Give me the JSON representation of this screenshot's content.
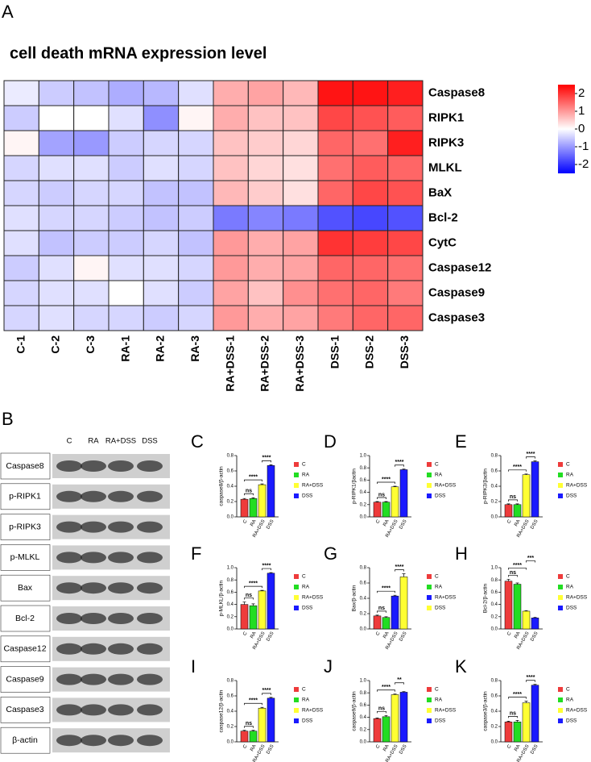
{
  "chart_data": [
    {
      "type": "heatmap",
      "panel": "A",
      "title": "cell death mRNA expression level",
      "x_categories": [
        "C-1",
        "C-2",
        "C-3",
        "RA-1",
        "RA-2",
        "RA-3",
        "RA+DSS-1",
        "RA+DSS-2",
        "RA+DSS-3",
        "DSS-1",
        "DSS-2",
        "DSS-3"
      ],
      "y_categories": [
        "Caspase8",
        "RIPK1",
        "RIPK3",
        "MLKL",
        "BaX",
        "Bcl-2",
        "CytC",
        "Caspase12",
        "Caspase9",
        "Caspase3"
      ],
      "values": [
        [
          -0.2,
          -0.5,
          -0.6,
          -0.8,
          -0.7,
          -0.3,
          0.8,
          0.9,
          0.7,
          2.3,
          2.3,
          2.2
        ],
        [
          -0.5,
          0,
          0,
          -0.3,
          -1.1,
          0.1,
          0.8,
          0.6,
          0.6,
          1.8,
          1.7,
          1.6
        ],
        [
          0.1,
          -0.9,
          -1.0,
          -0.5,
          -0.4,
          -0.4,
          0.6,
          0.5,
          0.4,
          1.5,
          1.4,
          2.2
        ],
        [
          -0.4,
          -0.3,
          -0.3,
          -0.5,
          -0.3,
          -0.4,
          0.6,
          0.4,
          0.3,
          1.4,
          1.6,
          1.5
        ],
        [
          -0.4,
          -0.5,
          -0.4,
          -0.4,
          -0.6,
          -0.6,
          0.7,
          0.5,
          0.3,
          1.5,
          1.8,
          1.7
        ],
        [
          -0.3,
          -0.4,
          -0.4,
          -0.5,
          -0.6,
          -0.5,
          -1.3,
          -1.2,
          -1.3,
          -1.7,
          -1.8,
          -1.7
        ],
        [
          -0.3,
          -0.6,
          -0.5,
          -0.5,
          -0.4,
          -0.6,
          1.0,
          0.8,
          0.9,
          2.0,
          1.9,
          1.8
        ],
        [
          -0.5,
          -0.3,
          0.1,
          -0.3,
          -0.3,
          -0.4,
          1.0,
          0.8,
          0.9,
          1.5,
          1.5,
          1.4
        ],
        [
          -0.4,
          -0.3,
          -0.3,
          0,
          -0.3,
          -0.5,
          0.9,
          0.6,
          1.1,
          1.4,
          1.5,
          1.3
        ],
        [
          -0.4,
          -0.3,
          -0.4,
          -0.4,
          -0.5,
          -0.4,
          1.0,
          0.8,
          0.9,
          1.3,
          1.5,
          1.5
        ]
      ],
      "colorbar": {
        "lim": [
          -2.5,
          2.5
        ],
        "ticks": [
          2,
          1,
          0,
          -1,
          -2
        ],
        "colors": [
          "#0000ff",
          "#ffffff",
          "#ff0000"
        ]
      }
    },
    {
      "type": "bar",
      "panel": "C",
      "ylabel": "caspase8/β-actin",
      "categories": [
        "C",
        "RA",
        "RA+DSS",
        "DSS"
      ],
      "colors": [
        "#ee3b3b",
        "#22dd22",
        "#ffff33",
        "#1a1aff"
      ],
      "values": [
        0.23,
        0.24,
        0.42,
        0.67
      ],
      "errors": [
        0.01,
        0.01,
        0.01,
        0.01
      ],
      "ylim": [
        0,
        0.8
      ],
      "yticks": [
        {
          "value": 0,
          "label": "0.0"
        },
        0.2,
        0.4,
        0.6,
        0.8
      ],
      "significance": [
        {
          "label": "ns",
          "between": [
            "C",
            "RA"
          ]
        },
        {
          "label": "****",
          "between": [
            "C",
            "RA+DSS"
          ]
        },
        {
          "label": "****",
          "between": [
            "RA+DSS",
            "DSS"
          ]
        }
      ]
    },
    {
      "type": "bar",
      "panel": "D",
      "ylabel": "p-RIPK1/βactin",
      "categories": [
        "C",
        "RA",
        "RA+DSS",
        "DSS"
      ],
      "colors": [
        "#ee3b3b",
        "#22dd22",
        "#ffff33",
        "#1a1aff"
      ],
      "values": [
        0.24,
        0.24,
        0.49,
        0.77
      ],
      "errors": [
        0.01,
        0.01,
        0.01,
        0.01
      ],
      "ylim": [
        0,
        1.0
      ],
      "yticks": [
        {
          "value": 0,
          "label": "0.0"
        },
        0.2,
        0.4,
        0.6,
        0.8,
        {
          "value": 1,
          "label": "1.0"
        }
      ],
      "significance": [
        {
          "label": "ns",
          "between": [
            "C",
            "RA"
          ]
        },
        {
          "label": "****",
          "between": [
            "C",
            "RA+DSS"
          ]
        },
        {
          "label": "****",
          "between": [
            "RA+DSS",
            "DSS"
          ]
        }
      ]
    },
    {
      "type": "bar",
      "panel": "E",
      "ylabel": "p-RIPK3/βactin",
      "categories": [
        "C",
        "RA",
        "RA+DSS",
        "DSS"
      ],
      "colors": [
        "#ee3b3b",
        "#22dd22",
        "#ffff33",
        "#1a1aff"
      ],
      "values": [
        0.16,
        0.16,
        0.55,
        0.72
      ],
      "errors": [
        0.01,
        0.01,
        0.01,
        0.01
      ],
      "ylim": [
        0,
        0.8
      ],
      "yticks": [
        {
          "value": 0,
          "label": "0.0"
        },
        0.2,
        0.4,
        0.6,
        0.8
      ],
      "significance": [
        {
          "label": "ns",
          "between": [
            "C",
            "RA"
          ]
        },
        {
          "label": "****",
          "between": [
            "C",
            "RA+DSS"
          ]
        },
        {
          "label": "****",
          "between": [
            "RA+DSS",
            "DSS"
          ]
        }
      ]
    },
    {
      "type": "bar",
      "panel": "F",
      "ylabel": "p-MLKL/β-actin",
      "categories": [
        "C",
        "RA",
        "RA+DSS",
        "DSS"
      ],
      "colors": [
        "#ee3b3b",
        "#22dd22",
        "#ffff33",
        "#1a1aff"
      ],
      "values": [
        0.4,
        0.38,
        0.62,
        0.91
      ],
      "errors": [
        0.04,
        0.03,
        0.01,
        0.01
      ],
      "ylim": [
        0,
        1.0
      ],
      "yticks": [
        {
          "value": 0,
          "label": "0.0"
        },
        0.2,
        0.4,
        0.6,
        0.8,
        {
          "value": 1,
          "label": "1.0"
        }
      ],
      "significance": [
        {
          "label": "ns",
          "between": [
            "C",
            "RA"
          ]
        },
        {
          "label": "****",
          "between": [
            "C",
            "RA+DSS"
          ]
        },
        {
          "label": "****",
          "between": [
            "RA+DSS",
            "DSS"
          ]
        }
      ]
    },
    {
      "type": "bar",
      "panel": "G",
      "ylabel": "Bax/β-actin",
      "categories": [
        "C",
        "RA",
        "RA+DSS",
        "DSS"
      ],
      "colors": [
        "#ee3b3b",
        "#22dd22",
        "#1a1aff",
        "#ffff33"
      ],
      "values": [
        0.17,
        0.15,
        0.43,
        0.68
      ],
      "errors": [
        0.01,
        0.01,
        0.01,
        0.04
      ],
      "ylim": [
        0,
        0.8
      ],
      "yticks": [
        {
          "value": 0,
          "label": "0.0"
        },
        0.2,
        0.4,
        0.6,
        0.8
      ],
      "significance": [
        {
          "label": "ns",
          "between": [
            "C",
            "RA"
          ]
        },
        {
          "label": "****",
          "between": [
            "C",
            "RA+DSS"
          ]
        },
        {
          "label": "****",
          "between": [
            "RA+DSS",
            "DSS"
          ]
        }
      ]
    },
    {
      "type": "bar",
      "panel": "H",
      "ylabel": "Bcl-2/β-actin",
      "categories": [
        "C",
        "RA",
        "RA+DSS",
        "DSS"
      ],
      "colors": [
        "#ee3b3b",
        "#22dd22",
        "#ffff33",
        "#1a1aff"
      ],
      "values": [
        0.78,
        0.73,
        0.29,
        0.18
      ],
      "errors": [
        0.03,
        0.02,
        0.01,
        0.01
      ],
      "ylim": [
        0,
        1.0
      ],
      "yticks": [
        {
          "value": 0,
          "label": "0.0"
        },
        0.2,
        0.4,
        0.6,
        0.8,
        {
          "value": 1,
          "label": "1.0"
        }
      ],
      "significance": [
        {
          "label": "ns",
          "between": [
            "C",
            "RA"
          ]
        },
        {
          "label": "****",
          "between": [
            "C",
            "RA+DSS"
          ]
        },
        {
          "label": "***",
          "between": [
            "RA+DSS",
            "DSS"
          ]
        }
      ]
    },
    {
      "type": "bar",
      "panel": "I",
      "ylabel": "caspase12/β-actin",
      "categories": [
        "C",
        "RA",
        "RA+DSS",
        "DSS"
      ],
      "colors": [
        "#ee3b3b",
        "#22dd22",
        "#ffff33",
        "#1a1aff"
      ],
      "values": [
        0.14,
        0.14,
        0.44,
        0.57
      ],
      "errors": [
        0.01,
        0.01,
        0.01,
        0.01
      ],
      "ylim": [
        0,
        0.8
      ],
      "yticks": [
        {
          "value": 0,
          "label": "0.0"
        },
        0.2,
        0.4,
        0.6,
        0.8
      ],
      "significance": [
        {
          "label": "ns",
          "between": [
            "C",
            "RA"
          ]
        },
        {
          "label": "****",
          "between": [
            "C",
            "RA+DSS"
          ]
        },
        {
          "label": "****",
          "between": [
            "RA+DSS",
            "DSS"
          ]
        }
      ]
    },
    {
      "type": "bar",
      "panel": "J",
      "ylabel": "caspase9/β-actin",
      "categories": [
        "C",
        "RA",
        "RA+DSS",
        "DSS"
      ],
      "colors": [
        "#ee3b3b",
        "#22dd22",
        "#ffff33",
        "#1a1aff"
      ],
      "values": [
        0.38,
        0.41,
        0.77,
        0.81
      ],
      "errors": [
        0.01,
        0.02,
        0.01,
        0.01
      ],
      "ylim": [
        0,
        1.0
      ],
      "yticks": [
        {
          "value": 0,
          "label": "0.0"
        },
        0.2,
        0.4,
        0.6,
        0.8,
        {
          "value": 1,
          "label": "1.0"
        }
      ],
      "significance": [
        {
          "label": "ns",
          "between": [
            "C",
            "RA"
          ]
        },
        {
          "label": "****",
          "between": [
            "C",
            "RA+DSS"
          ]
        },
        {
          "label": "**",
          "between": [
            "RA+DSS",
            "DSS"
          ]
        }
      ]
    },
    {
      "type": "bar",
      "panel": "K",
      "ylabel": "caspase3/β-actin",
      "categories": [
        "C",
        "RA",
        "RA+DSS",
        "DSS"
      ],
      "colors": [
        "#ee3b3b",
        "#22dd22",
        "#ffff33",
        "#1a1aff"
      ],
      "values": [
        0.26,
        0.26,
        0.51,
        0.74
      ],
      "errors": [
        0.01,
        0.02,
        0.02,
        0.01
      ],
      "ylim": [
        0,
        0.8
      ],
      "yticks": [
        {
          "value": 0,
          "label": "0.0"
        },
        0.2,
        0.4,
        0.6,
        0.8
      ],
      "significance": [
        {
          "label": "ns",
          "between": [
            "C",
            "RA"
          ]
        },
        {
          "label": "****",
          "between": [
            "C",
            "RA+DSS"
          ]
        },
        {
          "label": "****",
          "between": [
            "RA+DSS",
            "DSS"
          ]
        }
      ]
    }
  ],
  "blot": {
    "panel": "B",
    "lanes": [
      "C",
      "RA",
      "RA+DSS",
      "DSS"
    ],
    "rows": [
      "Caspase8",
      "p-RIPK1",
      "p-RIPK3",
      "p-MLKL",
      "Bax",
      "Bcl-2",
      "Caspase12",
      "Caspase9",
      "Caspase3",
      "β-actin"
    ]
  }
}
